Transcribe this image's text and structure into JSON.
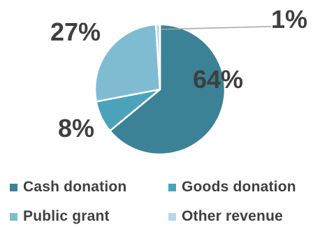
{
  "chart_data": {
    "type": "pie",
    "title": "",
    "legend_position": "bottom",
    "slices": [
      {
        "name": "Cash donation",
        "value": 64,
        "label": "64%",
        "color": "#3b8296"
      },
      {
        "name": "Goods donation",
        "value": 8,
        "label": "8%",
        "color": "#4aa3ba"
      },
      {
        "name": "Public grant",
        "value": 27,
        "label": "27%",
        "color": "#7fbcd2"
      },
      {
        "name": "Other revenue",
        "value": 1,
        "label": "1%",
        "color": "#b6d9e6"
      }
    ]
  }
}
